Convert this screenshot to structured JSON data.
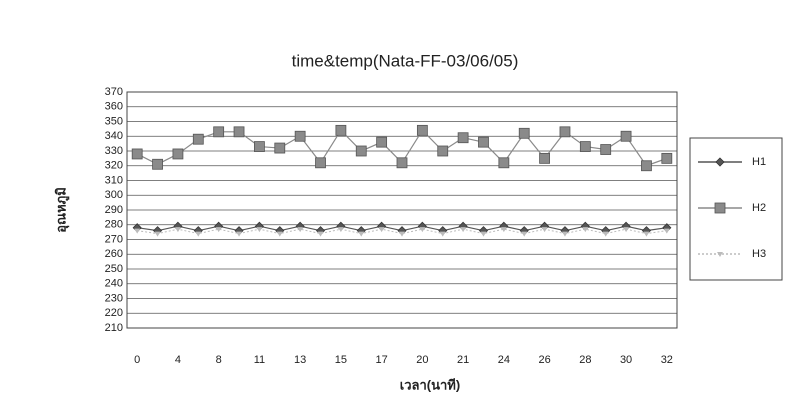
{
  "chart_data": {
    "type": "line",
    "title": "time&temp(Nata-FF-03/06/05)",
    "x_label": "เวลา(นาที)",
    "y_label": "อุณหภูมิ",
    "categories": [
      "0",
      null,
      "4",
      null,
      "8",
      null,
      "11",
      null,
      "13",
      null,
      "15",
      null,
      "17",
      null,
      "20",
      null,
      "21",
      null,
      "24",
      null,
      "26",
      null,
      "28",
      null,
      "30",
      null,
      "32"
    ],
    "series": [
      {
        "name": "H1",
        "color": "#555555",
        "marker": "diamond",
        "values": [
          278,
          276,
          279,
          276,
          279,
          276,
          279,
          276,
          279,
          276,
          279,
          276,
          279,
          276,
          279,
          276,
          279,
          276,
          279,
          276,
          279,
          276,
          279,
          276,
          279,
          276,
          278
        ]
      },
      {
        "name": "H2",
        "color": "#8a8a8a",
        "marker": "square",
        "values": [
          328,
          321,
          328,
          338,
          343,
          343,
          333,
          332,
          340,
          322,
          344,
          330,
          336,
          322,
          344,
          330,
          339,
          336,
          322,
          342,
          325,
          343,
          333,
          331,
          340,
          320,
          325
        ]
      },
      {
        "name": "H3",
        "color": "#bbbbbb",
        "marker": "triangle",
        "values": [
          276,
          274,
          277,
          274,
          277,
          274,
          277,
          274,
          277,
          274,
          277,
          274,
          277,
          274,
          277,
          274,
          277,
          274,
          277,
          274,
          277,
          274,
          277,
          274,
          277,
          274,
          276
        ]
      }
    ],
    "ylim": [
      210,
      370
    ],
    "yticks": [
      210,
      220,
      230,
      240,
      250,
      260,
      270,
      280,
      290,
      300,
      310,
      320,
      330,
      340,
      350,
      360,
      370
    ],
    "grid": true,
    "legend": "right"
  }
}
